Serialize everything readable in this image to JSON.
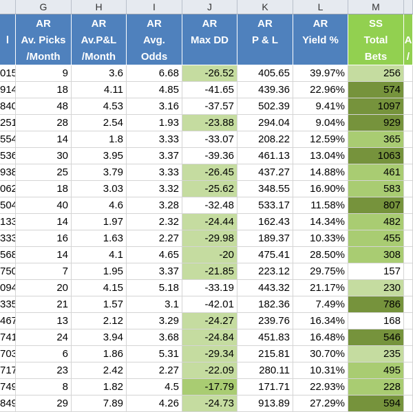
{
  "columns": [
    {
      "letter": "",
      "h": [
        "",
        "l",
        ""
      ]
    },
    {
      "letter": "G",
      "h": [
        "AR",
        "Av. Picks",
        "/Month"
      ]
    },
    {
      "letter": "H",
      "h": [
        "AR",
        "Av.P&L",
        "/Month"
      ]
    },
    {
      "letter": "I",
      "h": [
        "AR",
        "Avg.",
        "Odds"
      ]
    },
    {
      "letter": "J",
      "h": [
        "AR",
        "Max DD",
        ""
      ]
    },
    {
      "letter": "K",
      "h": [
        "AR",
        "P & L",
        ""
      ]
    },
    {
      "letter": "L",
      "h": [
        "AR",
        "Yield %",
        ""
      ]
    },
    {
      "letter": "M",
      "h": [
        "SS",
        "Total",
        "Bets"
      ]
    },
    {
      "letter": "",
      "h": [
        "",
        "A",
        "/"
      ]
    }
  ],
  "rows": [
    [
      "015",
      "9",
      "3.6",
      "6.68",
      "-26.52",
      "405.65",
      "39.97%",
      "256"
    ],
    [
      "914",
      "18",
      "4.11",
      "4.85",
      "-41.65",
      "439.36",
      "22.96%",
      "574"
    ],
    [
      "840",
      "48",
      "4.53",
      "3.16",
      "-37.57",
      "502.39",
      "9.41%",
      "1097"
    ],
    [
      "251",
      "28",
      "2.54",
      "1.93",
      "-23.88",
      "294.04",
      "9.04%",
      "929"
    ],
    [
      "554",
      "14",
      "1.8",
      "3.33",
      "-33.07",
      "208.22",
      "12.59%",
      "365"
    ],
    [
      "536",
      "30",
      "3.95",
      "3.37",
      "-39.36",
      "461.13",
      "13.04%",
      "1063"
    ],
    [
      "938",
      "25",
      "3.79",
      "3.33",
      "-26.45",
      "437.27",
      "14.88%",
      "461"
    ],
    [
      "062",
      "18",
      "3.03",
      "3.32",
      "-25.62",
      "348.55",
      "16.90%",
      "583"
    ],
    [
      "504",
      "40",
      "4.6",
      "3.28",
      "-32.48",
      "533.17",
      "11.58%",
      "807"
    ],
    [
      "133",
      "14",
      "1.97",
      "2.32",
      "-24.44",
      "162.43",
      "14.34%",
      "482"
    ],
    [
      "333",
      "16",
      "1.63",
      "2.27",
      "-29.98",
      "189.37",
      "10.33%",
      "455"
    ],
    [
      "568",
      "14",
      "4.1",
      "4.65",
      "-20",
      "475.41",
      "28.50%",
      "308"
    ],
    [
      "750",
      "7",
      "1.95",
      "3.37",
      "-21.85",
      "223.12",
      "29.75%",
      "157"
    ],
    [
      "094",
      "20",
      "4.15",
      "5.18",
      "-33.19",
      "443.32",
      "21.17%",
      "230"
    ],
    [
      "335",
      "21",
      "1.57",
      "3.1",
      "-42.01",
      "182.36",
      "7.49%",
      "786"
    ],
    [
      "467",
      "13",
      "2.12",
      "3.29",
      "-24.27",
      "239.76",
      "16.34%",
      "168"
    ],
    [
      "741",
      "24",
      "3.94",
      "3.68",
      "-24.84",
      "451.83",
      "16.48%",
      "546"
    ],
    [
      "703",
      "6",
      "1.86",
      "5.31",
      "-29.34",
      "215.81",
      "30.70%",
      "235"
    ],
    [
      "717",
      "23",
      "2.42",
      "2.27",
      "-22.09",
      "280.11",
      "10.31%",
      "495"
    ],
    [
      "749",
      "8",
      "1.82",
      "4.5",
      "-17.79",
      "171.71",
      "22.93%",
      "228"
    ],
    [
      "849",
      "29",
      "7.89",
      "4.26",
      "-24.73",
      "913.89",
      "27.29%",
      "594"
    ]
  ],
  "fills_J": [
    "#c5dca0",
    "",
    "",
    "#c5dca0",
    "",
    "",
    "#c5dca0",
    "#c5dca0",
    "",
    "#c5dca0",
    "#c5dca0",
    "#c5dca0",
    "#c5dca0",
    "",
    "",
    "#c5dca0",
    "#c5dca0",
    "#c5dca0",
    "#c5dca0",
    "#a9cc72",
    "#c5dca0"
  ],
  "fills_M": [
    "#c5dca0",
    "#76933c",
    "#76933c",
    "#76933c",
    "#a9cc72",
    "#76933c",
    "#a9cc72",
    "#a9cc72",
    "#76933c",
    "#a9cc72",
    "#a9cc72",
    "#a9cc72",
    "",
    "#c5dca0",
    "#76933c",
    "",
    "#76933c",
    "#c5dca0",
    "#a9cc72",
    "#a9cc72",
    "#76933c"
  ],
  "colors": {
    "header_blue": "#4f81bd",
    "header_green": "#92d050"
  }
}
